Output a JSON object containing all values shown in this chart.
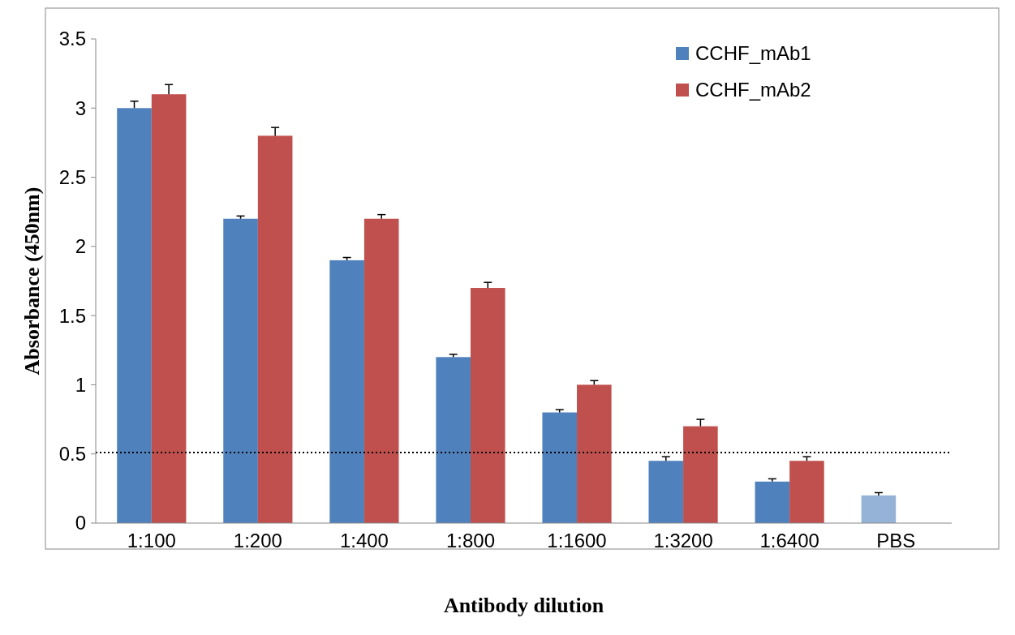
{
  "chart_data": {
    "type": "bar",
    "xlabel": "Antibody dilution",
    "ylabel": "Absorbance (450nm)",
    "categories": [
      "1:100",
      "1:200",
      "1:400",
      "1:800",
      "1:1600",
      "1:3200",
      "1:6400",
      "PBS"
    ],
    "series": [
      {
        "name": "CCHF_mAb1",
        "color": "#4f81bd",
        "colors": [
          "#4f81bd",
          "#4f81bd",
          "#4f81bd",
          "#4f81bd",
          "#4f81bd",
          "#4f81bd",
          "#4f81bd",
          "#95b3d7"
        ],
        "values": [
          3.0,
          2.2,
          1.9,
          1.2,
          0.8,
          0.45,
          0.3,
          0.2
        ],
        "errors": [
          0.05,
          0.02,
          0.02,
          0.02,
          0.02,
          0.03,
          0.02,
          0.02
        ]
      },
      {
        "name": "CCHF_mAb2",
        "color": "#c0504d",
        "values": [
          3.1,
          2.8,
          2.2,
          1.7,
          1.0,
          0.7,
          0.45,
          null
        ],
        "errors": [
          0.07,
          0.06,
          0.03,
          0.04,
          0.03,
          0.05,
          0.03,
          null
        ]
      }
    ],
    "ylim": [
      0,
      3.5
    ],
    "yticks": [
      0,
      {
        "value": 0.5,
        "label": "0.5"
      },
      1,
      {
        "value": 1.5,
        "label": "1.5"
      },
      2,
      {
        "value": 2.5,
        "label": "2.5"
      },
      3,
      {
        "value": 3.5,
        "label": "3.5"
      }
    ],
    "ref_lines": [
      {
        "axis": "y",
        "value": 0.51,
        "line_style": "dotted",
        "color": "#000000"
      }
    ],
    "grid": false,
    "legend": "top right"
  }
}
